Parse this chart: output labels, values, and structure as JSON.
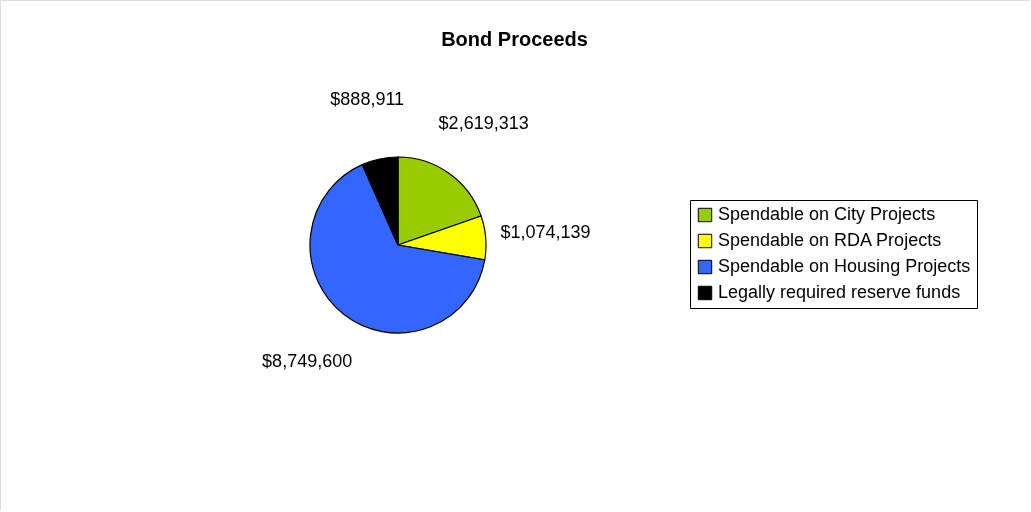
{
  "chart_data": {
    "type": "pie",
    "title": "Bond Proceeds",
    "categories": [
      "Spendable on City Projects",
      "Spendable on RDA Projects",
      "Spendable on Housing Projects",
      "Legally required reserve funds"
    ],
    "values": [
      2619313,
      1074139,
      8749600,
      888911
    ],
    "colors": [
      "#99cc00",
      "#ffff00",
      "#3366ff",
      "#000000"
    ],
    "value_labels": [
      "$2,619,313",
      "$1,074,139",
      "$8,749,600",
      "$888,911"
    ],
    "legend": "right"
  }
}
